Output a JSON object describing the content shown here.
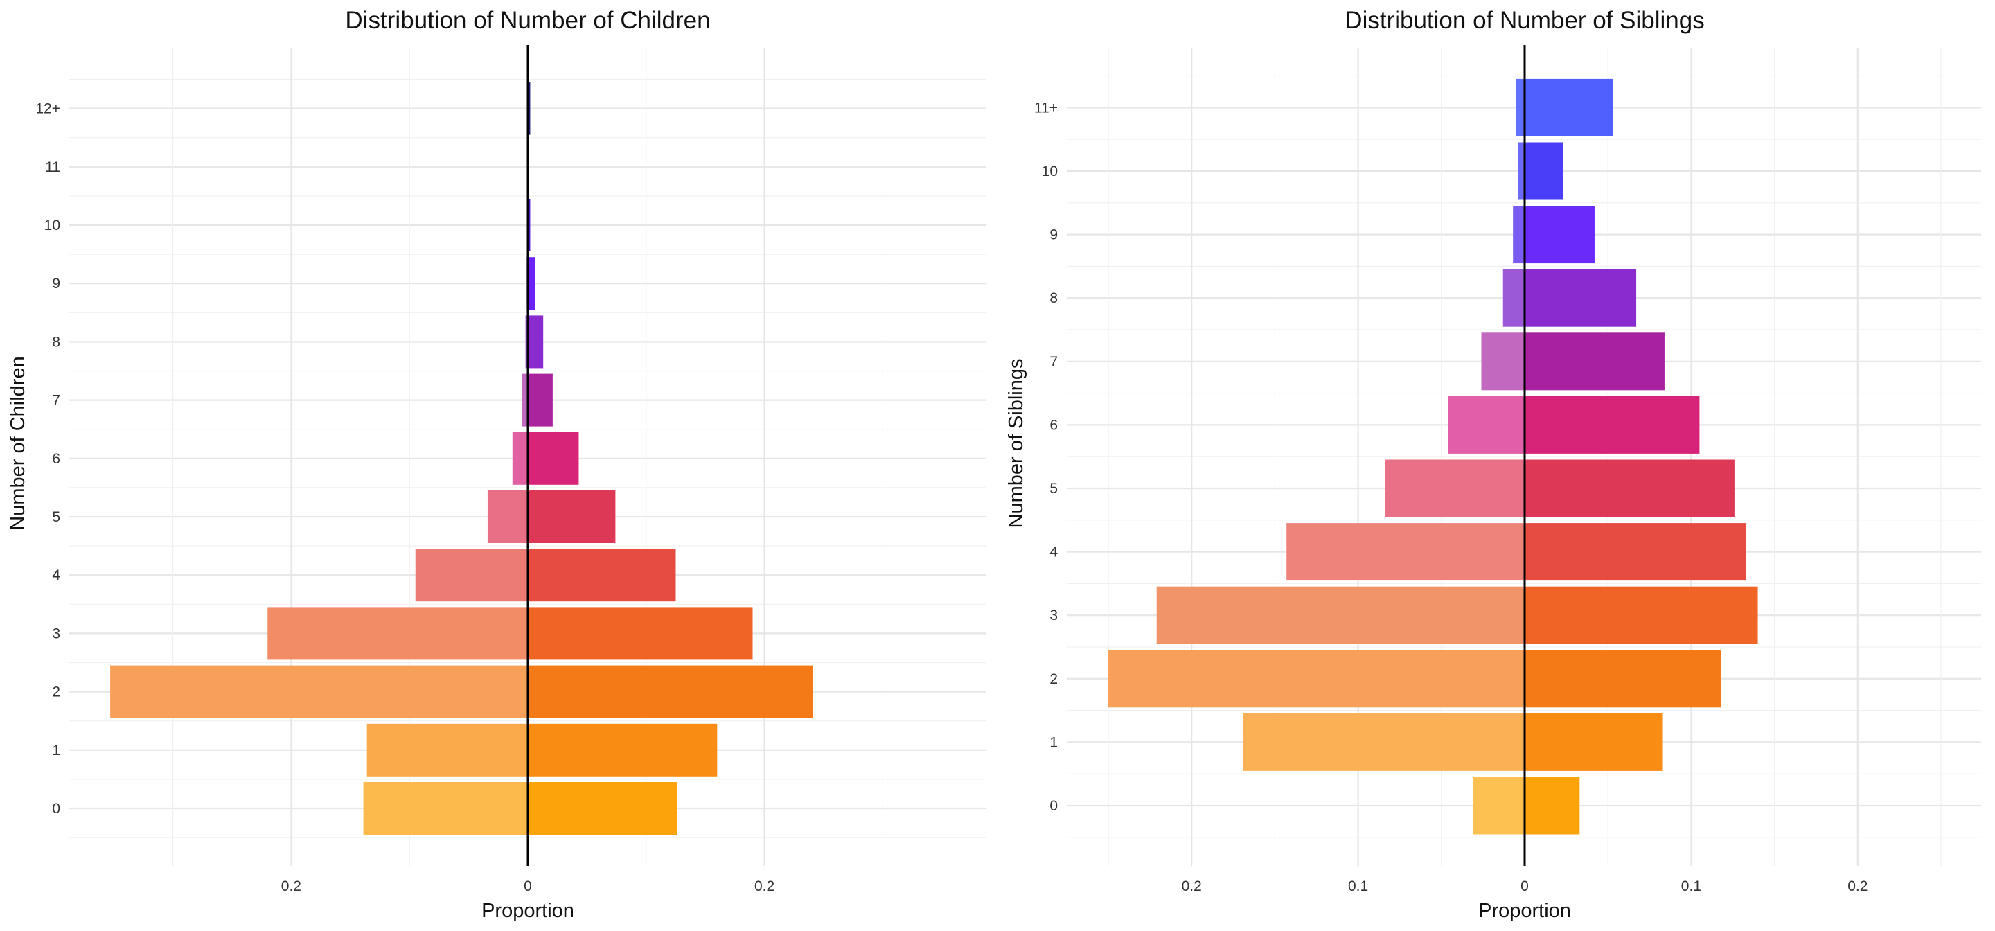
{
  "chart_data": [
    {
      "type": "bar",
      "orientation": "horizontal-diverging",
      "title": "Distribution of Number of Children",
      "xlabel": "Proportion",
      "ylabel": "Number of Children",
      "categories": [
        "0",
        "1",
        "2",
        "3",
        "4",
        "5",
        "6",
        "7",
        "8",
        "9",
        "10",
        "11",
        "12+"
      ],
      "series": [
        {
          "side": "left",
          "values": [
            0.139,
            0.136,
            0.353,
            0.22,
            0.095,
            0.034,
            0.013,
            0.005,
            0.002,
            0.001,
            0.0005,
            0.0003,
            0.0003
          ],
          "colors": [
            "#fcb94c",
            "#fbaa4b",
            "#f7a05a",
            "#f18c66",
            "#ec7b74",
            "#e76f86",
            "#e060a2",
            "#c06ac0",
            "#a058d0",
            "#8050e8",
            "#7040f0",
            "#6040f0",
            "#5040f0"
          ]
        },
        {
          "side": "right",
          "values": [
            0.126,
            0.16,
            0.241,
            0.19,
            0.125,
            0.074,
            0.043,
            0.021,
            0.013,
            0.006,
            0.002,
            0.001,
            0.002
          ],
          "colors": [
            "#fca30c",
            "#f98d14",
            "#f47a17",
            "#f06425",
            "#e64c3f",
            "#dd3856",
            "#d82478",
            "#aa249e",
            "#8a2bd0",
            "#6a22f5",
            "#4a18d0",
            "#2a148a",
            "#1c1c7a"
          ]
        }
      ],
      "xlim": [
        -0.39,
        0.39
      ],
      "xticks": [
        {
          "value": -0.2,
          "label": "0.2"
        },
        {
          "value": 0,
          "label": "0"
        },
        {
          "value": 0.2,
          "label": "0.2"
        }
      ],
      "grid": true
    },
    {
      "type": "bar",
      "orientation": "horizontal-diverging",
      "title": "Distribution of Number of Siblings",
      "xlabel": "Proportion",
      "ylabel": "Number of Siblings",
      "categories": [
        "0",
        "1",
        "2",
        "3",
        "4",
        "5",
        "6",
        "7",
        "8",
        "9",
        "10",
        "11+"
      ],
      "series": [
        {
          "side": "left",
          "values": [
            0.031,
            0.169,
            0.25,
            0.221,
            0.143,
            0.084,
            0.046,
            0.026,
            0.013,
            0.007,
            0.004,
            0.005
          ],
          "colors": [
            "#fdc151",
            "#fbb055",
            "#f7a05a",
            "#f29469",
            "#ee837a",
            "#e87187",
            "#e25ea8",
            "#c268be",
            "#9b59d8",
            "#7a5cf3",
            "#6a6af5",
            "#6070ff"
          ]
        },
        {
          "side": "right",
          "values": [
            0.033,
            0.083,
            0.118,
            0.14,
            0.133,
            0.126,
            0.105,
            0.084,
            0.067,
            0.042,
            0.023,
            0.053
          ],
          "colors": [
            "#fca30c",
            "#f98d14",
            "#f47a17",
            "#f06425",
            "#e64c3f",
            "#dd3856",
            "#d82478",
            "#a822a0",
            "#8a2bd0",
            "#6a2bfa",
            "#4a3ef8",
            "#5060ff"
          ]
        }
      ],
      "xlim": [
        -0.275,
        0.275
      ],
      "xticks": [
        {
          "value": -0.2,
          "label": "0.2"
        },
        {
          "value": -0.1,
          "label": "0.1"
        },
        {
          "value": 0,
          "label": "0"
        },
        {
          "value": 0.1,
          "label": "0.1"
        },
        {
          "value": 0.2,
          "label": "0.2"
        }
      ],
      "grid": true
    }
  ]
}
